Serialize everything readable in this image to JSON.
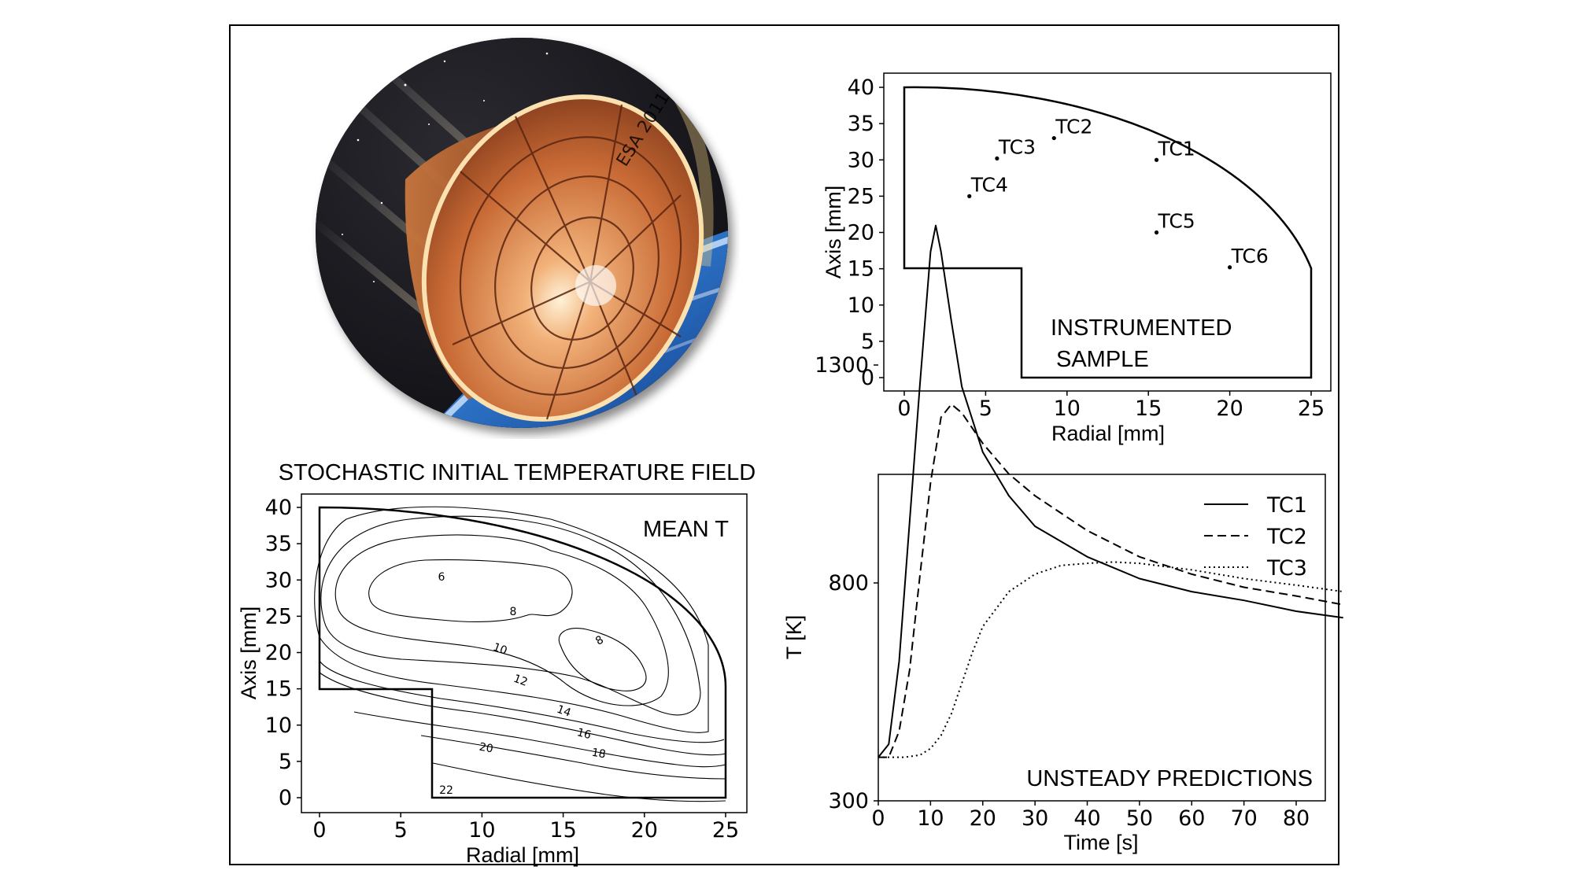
{
  "illustration": {
    "capsule_marking": "ESA 2011"
  },
  "instrumented_panel": {
    "annotation_line1": "INSTRUMENTED",
    "annotation_line2": "SAMPLE",
    "xlabel": "Radial [mm]",
    "ylabel": "Axis [mm]",
    "xticks": [
      "0",
      "5",
      "10",
      "15",
      "20",
      "25"
    ],
    "yticks": [
      "0",
      "5",
      "10",
      "15",
      "20",
      "25",
      "30",
      "35",
      "40"
    ],
    "thermocouples": [
      {
        "label": "TC1",
        "r": 15.5,
        "z": 30
      },
      {
        "label": "TC2",
        "r": 9.2,
        "z": 33
      },
      {
        "label": "TC3",
        "r": 5.7,
        "z": 30.2
      },
      {
        "label": "TC4",
        "r": 4.0,
        "z": 25
      },
      {
        "label": "TC5",
        "r": 15.5,
        "z": 20
      },
      {
        "label": "TC6",
        "r": 20.0,
        "z": 15.2
      }
    ]
  },
  "field_panel": {
    "title": "STOCHASTIC INITIAL TEMPERATURE FIELD",
    "annotation": "MEAN T",
    "xlabel": "Radial [mm]",
    "ylabel": "Axis [mm]",
    "xticks": [
      "0",
      "5",
      "10",
      "15",
      "20",
      "25"
    ],
    "yticks": [
      "0",
      "5",
      "10",
      "15",
      "20",
      "25",
      "30",
      "35",
      "40"
    ],
    "contour_labels": [
      "6",
      "8",
      "8",
      "10",
      "12",
      "14",
      "16",
      "18",
      "20",
      "22"
    ]
  },
  "chart_data": {
    "type": "line",
    "annotation": "UNSTEADY PREDICTIONS",
    "xlabel": "Time [s]",
    "ylabel": "T [K]",
    "xlim": [
      0,
      90
    ],
    "ylim": [
      300,
      1900
    ],
    "xticks": [
      "0",
      "10",
      "20",
      "30",
      "40",
      "50",
      "60",
      "70",
      "80"
    ],
    "yticks": [
      "300",
      "800",
      "1300"
    ],
    "legend_position": "top-right",
    "series": [
      {
        "name": "TC1",
        "style": "solid",
        "x": [
          0,
          2,
          4,
          6,
          8,
          10,
          11,
          12,
          14,
          16,
          20,
          25,
          30,
          40,
          50,
          60,
          70,
          80,
          89
        ],
        "y": [
          400,
          430,
          620,
          940,
          1260,
          1560,
          1620,
          1560,
          1400,
          1250,
          1100,
          1000,
          930,
          860,
          810,
          780,
          760,
          735,
          720
        ]
      },
      {
        "name": "TC2",
        "style": "dashed",
        "x": [
          0,
          2,
          4,
          6,
          8,
          10,
          12,
          14,
          16,
          20,
          25,
          30,
          40,
          50,
          60,
          70,
          80,
          89
        ],
        "y": [
          400,
          400,
          460,
          600,
          820,
          1030,
          1180,
          1210,
          1190,
          1120,
          1050,
          1000,
          920,
          860,
          820,
          790,
          770,
          750
        ]
      },
      {
        "name": "TC3",
        "style": "dotted",
        "x": [
          0,
          5,
          8,
          10,
          12,
          14,
          16,
          18,
          20,
          25,
          30,
          35,
          40,
          45,
          50,
          60,
          70,
          80,
          89
        ],
        "y": [
          400,
          400,
          405,
          420,
          450,
          500,
          570,
          640,
          700,
          780,
          820,
          840,
          845,
          848,
          845,
          830,
          810,
          795,
          780
        ]
      }
    ]
  }
}
